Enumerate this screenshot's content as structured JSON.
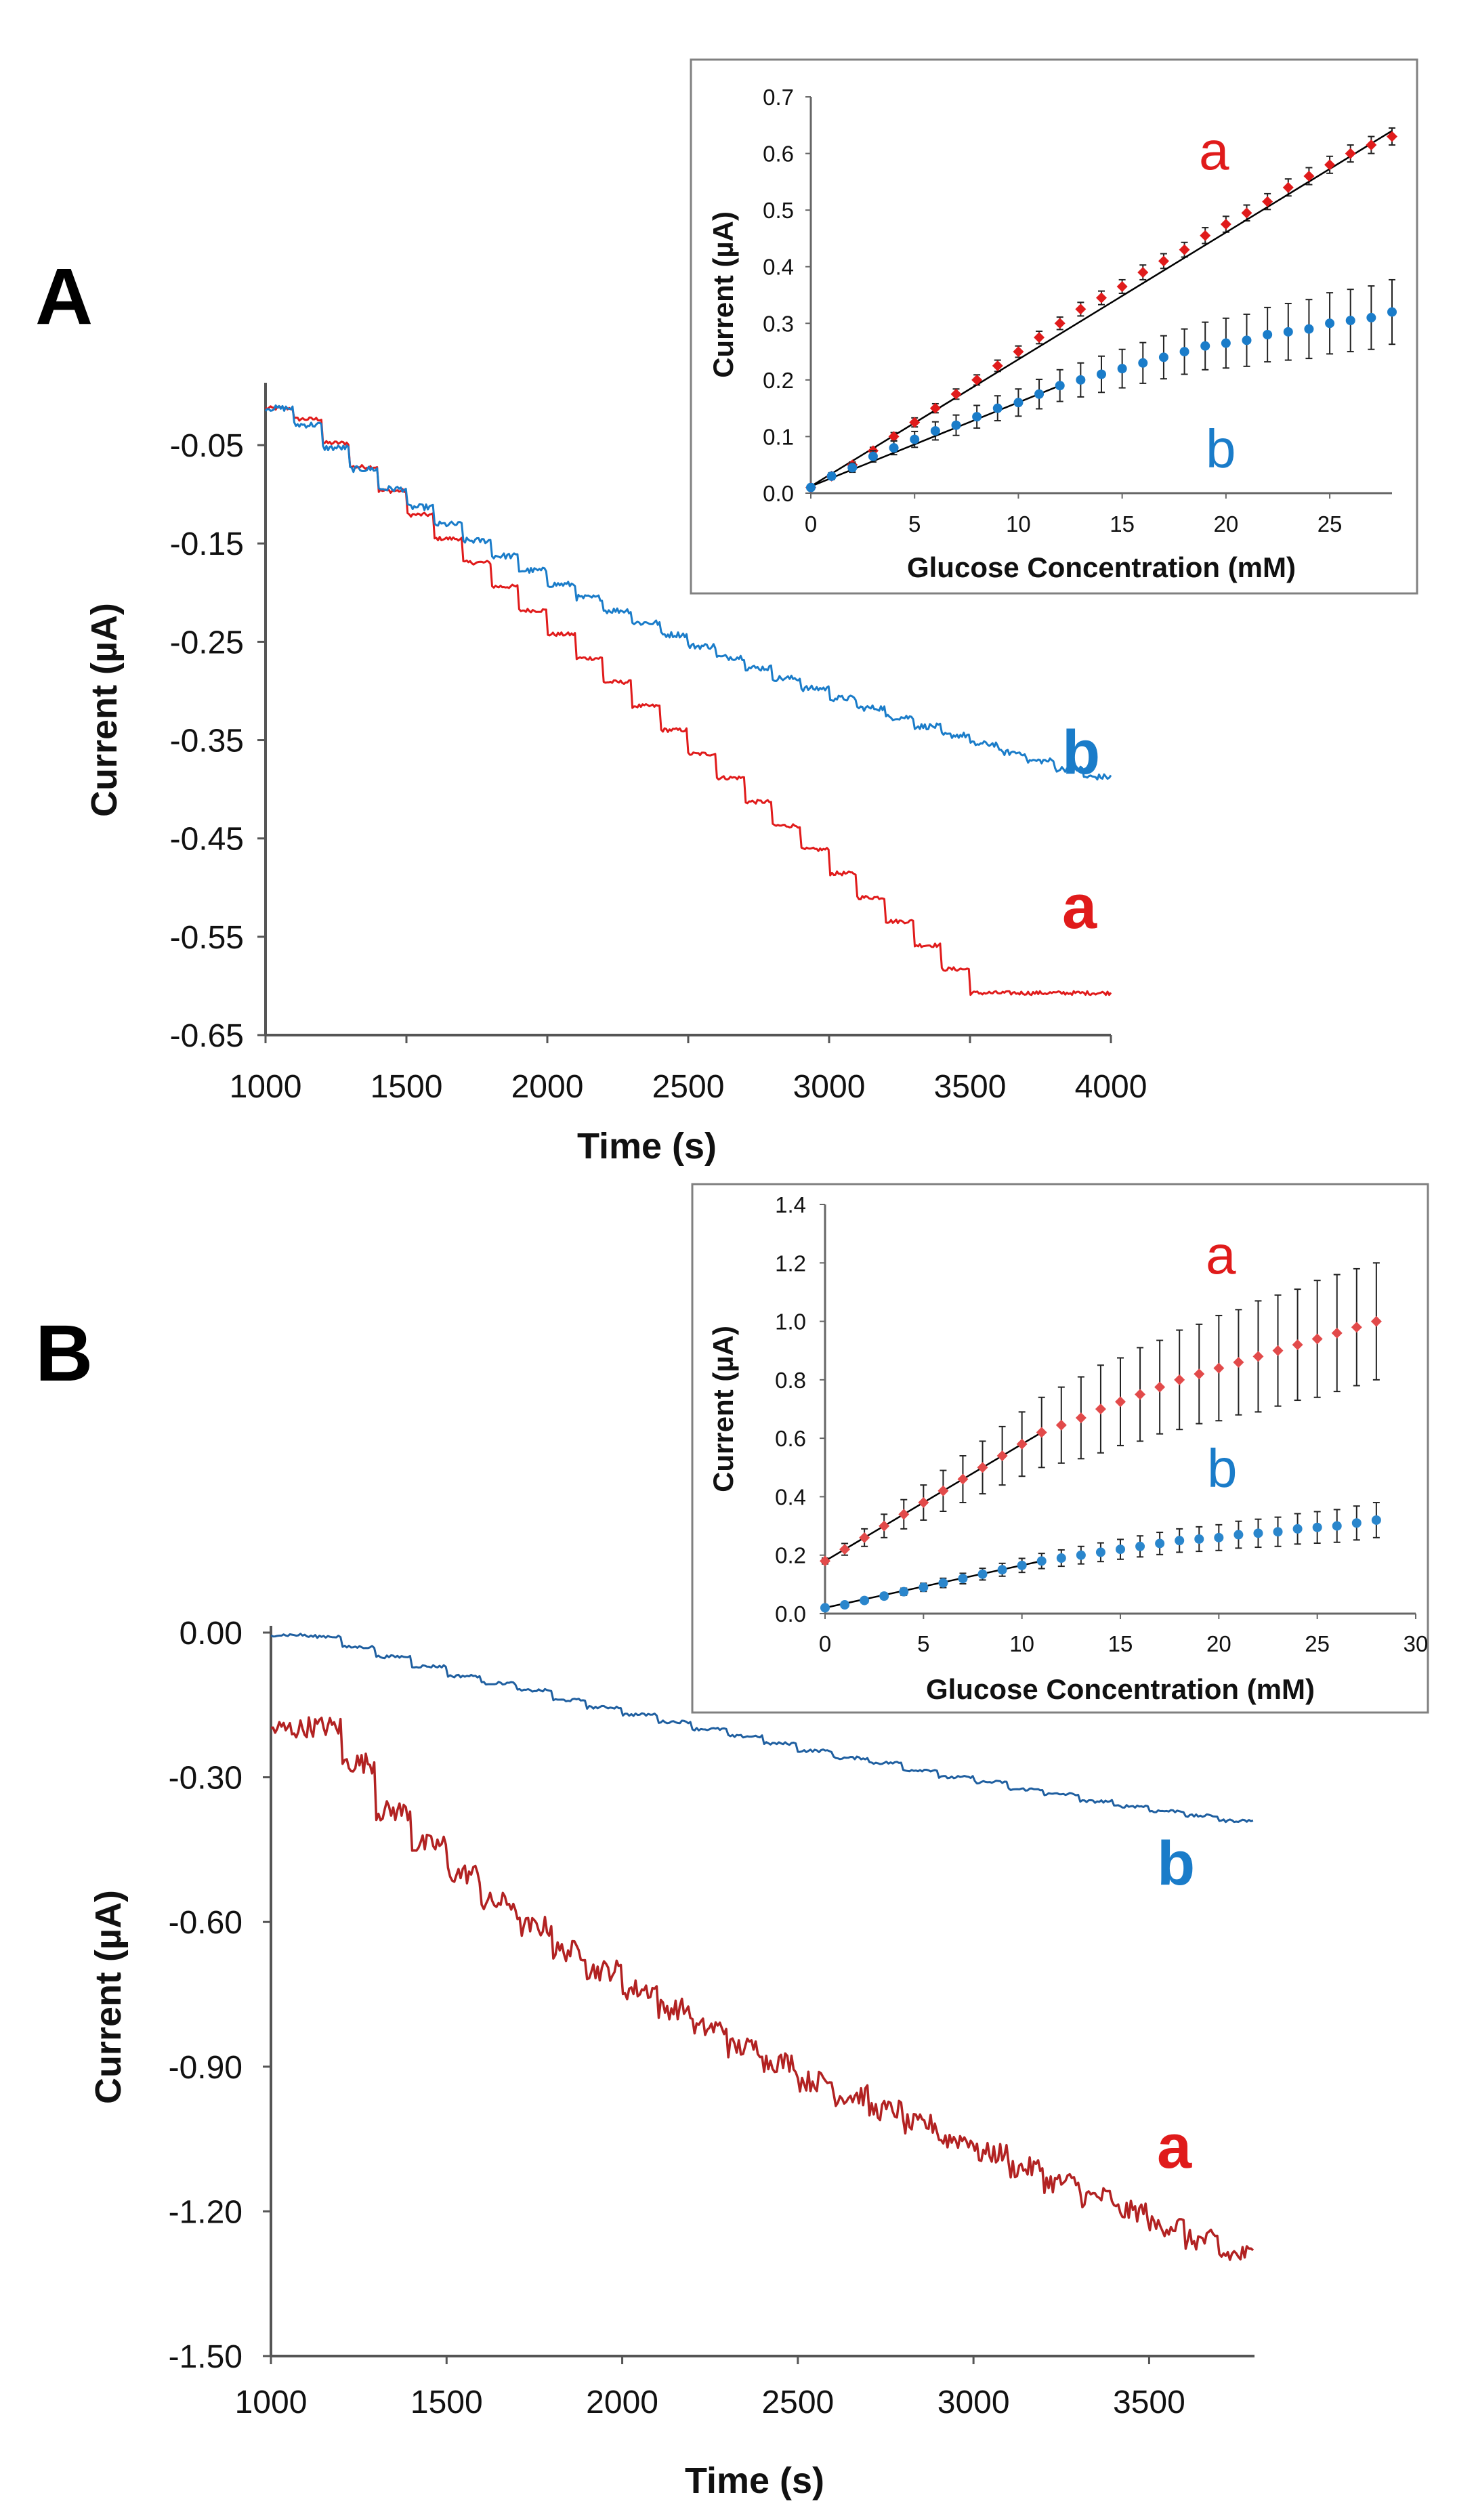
{
  "panels": {
    "A": {
      "label": "A"
    },
    "B": {
      "label": "B"
    }
  },
  "colors": {
    "red": "#e01b1b",
    "blue": "#1a7cc9",
    "dark_red": "#b22222",
    "dark_blue": "#1f5fa0",
    "inset_red": "#e24a4a",
    "inset_blue": "#2a86cc",
    "fit_line": "#000000",
    "error_bar": "#222222"
  },
  "chart_data": [
    {
      "id": "A-main",
      "type": "line",
      "xlabel": "Time (s)",
      "ylabel": "Current (µA)",
      "xlim": [
        1000,
        4000
      ],
      "ylim": [
        -0.65,
        0.01
      ],
      "x_ticks": [
        1000,
        1500,
        2000,
        2500,
        3000,
        3500,
        4000
      ],
      "x_tick_labels": [
        "1000",
        "1500",
        "2000",
        "2500",
        "3000",
        "3500",
        "4000"
      ],
      "y_ticks": [
        -0.05,
        -0.15,
        -0.25,
        -0.35,
        -0.45,
        -0.55,
        -0.65
      ],
      "y_tick_labels": [
        "-0.05",
        "-0.15",
        "-0.25",
        "-0.35",
        "-0.45",
        "-0.55",
        "-0.65"
      ],
      "step_interval_s": 100,
      "series": [
        {
          "name": "a",
          "label": "a",
          "color": "red",
          "x_start": 1000,
          "x_end": 4000,
          "levels": [
            -0.0125,
            -0.0235,
            -0.0478,
            -0.0721,
            -0.0965,
            -0.1208,
            -0.1451,
            -0.1694,
            -0.1938,
            -0.2181,
            -0.2424,
            -0.2667,
            -0.291,
            -0.3154,
            -0.3397,
            -0.364,
            -0.3883,
            -0.4127,
            -0.437,
            -0.4613,
            -0.4856,
            -0.51,
            -0.5343,
            -0.5586,
            -0.5829,
            -0.6072,
            -0.6072,
            -0.6072,
            -0.6072,
            -0.6072
          ],
          "noise": 0.002
        },
        {
          "name": "b",
          "label": "b",
          "color": "blue",
          "x_start": 1000,
          "x_end": 4000,
          "levels": [
            -0.0125,
            -0.0293,
            -0.0528,
            -0.0744,
            -0.0944,
            -0.1131,
            -0.1306,
            -0.1471,
            -0.1627,
            -0.1775,
            -0.1917,
            -0.2052,
            -0.2182,
            -0.2307,
            -0.2427,
            -0.2544,
            -0.2657,
            -0.2766,
            -0.2872,
            -0.2975,
            -0.3075,
            -0.3173,
            -0.3268,
            -0.3361,
            -0.3451,
            -0.354,
            -0.3626,
            -0.3711,
            -0.3794,
            -0.3875
          ],
          "noise": 0.003
        }
      ]
    },
    {
      "id": "A-inset",
      "type": "scatter",
      "xlabel": "Glucose Concentration (mM)",
      "ylabel": "Current (µA)",
      "xlim": [
        0,
        28
      ],
      "ylim": [
        0,
        0.7
      ],
      "x_ticks": [
        0,
        5,
        10,
        15,
        20,
        25
      ],
      "x_tick_labels": [
        "0",
        "5",
        "10",
        "15",
        "20",
        "25"
      ],
      "y_ticks": [
        0.0,
        0.1,
        0.2,
        0.3,
        0.4,
        0.5,
        0.6,
        0.7
      ],
      "y_tick_labels": [
        "0.0",
        "0.1",
        "0.2",
        "0.3",
        "0.4",
        "0.5",
        "0.6",
        "0.7"
      ],
      "series": [
        {
          "name": "a",
          "label": "a",
          "color": "red",
          "marker": "diamond",
          "x": [
            0,
            1,
            2,
            3,
            4,
            5,
            6,
            7,
            8,
            9,
            10,
            11,
            12,
            13,
            14,
            15,
            16,
            17,
            18,
            19,
            20,
            21,
            22,
            23,
            24,
            25,
            26,
            27,
            28
          ],
          "y": [
            0.01,
            0.03,
            0.05,
            0.075,
            0.1,
            0.125,
            0.15,
            0.175,
            0.2,
            0.225,
            0.25,
            0.275,
            0.3,
            0.325,
            0.345,
            0.365,
            0.39,
            0.41,
            0.43,
            0.455,
            0.475,
            0.495,
            0.515,
            0.54,
            0.56,
            0.58,
            0.6,
            0.615,
            0.63
          ],
          "error": [
            0,
            0.004,
            0.005,
            0.006,
            0.007,
            0.008,
            0.008,
            0.009,
            0.009,
            0.01,
            0.01,
            0.011,
            0.011,
            0.012,
            0.012,
            0.012,
            0.013,
            0.013,
            0.013,
            0.014,
            0.014,
            0.014,
            0.014,
            0.015,
            0.015,
            0.015,
            0.015,
            0.015,
            0.015
          ],
          "fit": {
            "x": [
              0,
              28
            ],
            "y": [
              0.012,
              0.64
            ]
          }
        },
        {
          "name": "b",
          "label": "b",
          "color": "blue",
          "marker": "circle",
          "x": [
            0,
            1,
            2,
            3,
            4,
            5,
            6,
            7,
            8,
            9,
            10,
            11,
            12,
            13,
            14,
            15,
            16,
            17,
            18,
            19,
            20,
            21,
            22,
            23,
            24,
            25,
            26,
            27,
            28
          ],
          "y": [
            0.01,
            0.03,
            0.045,
            0.065,
            0.08,
            0.095,
            0.11,
            0.12,
            0.135,
            0.15,
            0.16,
            0.175,
            0.19,
            0.2,
            0.21,
            0.22,
            0.23,
            0.24,
            0.25,
            0.26,
            0.265,
            0.27,
            0.28,
            0.285,
            0.29,
            0.3,
            0.305,
            0.31,
            0.32
          ],
          "error": [
            0,
            0.006,
            0.008,
            0.01,
            0.012,
            0.014,
            0.016,
            0.018,
            0.02,
            0.022,
            0.024,
            0.026,
            0.028,
            0.03,
            0.032,
            0.034,
            0.036,
            0.038,
            0.04,
            0.042,
            0.044,
            0.046,
            0.048,
            0.05,
            0.052,
            0.054,
            0.055,
            0.056,
            0.057
          ],
          "fit": {
            "x": [
              0,
              12
            ],
            "y": [
              0.012,
              0.19
            ]
          }
        }
      ]
    },
    {
      "id": "B-main",
      "type": "line",
      "xlabel": "Time (s)",
      "ylabel": "Current (µA)",
      "xlim": [
        1000,
        3800
      ],
      "ylim": [
        -1.5,
        0.0
      ],
      "x_ticks": [
        1000,
        1500,
        2000,
        2500,
        3000,
        3500
      ],
      "x_tick_labels": [
        "1000",
        "1500",
        "2000",
        "2500",
        "3000",
        "3500"
      ],
      "y_ticks": [
        0.0,
        -0.3,
        -0.6,
        -0.9,
        -1.2,
        -1.5
      ],
      "y_tick_labels": [
        "0.00",
        "-0.30",
        "-0.60",
        "-0.90",
        "-1.20",
        "-1.50"
      ],
      "step_interval_s": 100,
      "series": [
        {
          "name": "a",
          "label": "a",
          "color": "dark_red",
          "x_start": 1000,
          "x_end": 3800,
          "levels": [
            -0.2,
            -0.195,
            -0.27,
            -0.37,
            -0.44,
            -0.5,
            -0.56,
            -0.61,
            -0.66,
            -0.7,
            -0.74,
            -0.78,
            -0.82,
            -0.86,
            -0.89,
            -0.93,
            -0.96,
            -0.99,
            -1.02,
            -1.05,
            -1.08,
            -1.11,
            -1.14,
            -1.17,
            -1.2,
            -1.23,
            -1.26,
            -1.29
          ],
          "noise": 0.022
        },
        {
          "name": "b",
          "label": "b",
          "color": "dark_blue",
          "x_start": 1000,
          "x_end": 3800,
          "levels": [
            -0.005,
            -0.008,
            -0.03,
            -0.05,
            -0.07,
            -0.09,
            -0.105,
            -0.12,
            -0.14,
            -0.155,
            -0.17,
            -0.185,
            -0.2,
            -0.215,
            -0.23,
            -0.245,
            -0.26,
            -0.27,
            -0.285,
            -0.3,
            -0.31,
            -0.325,
            -0.335,
            -0.35,
            -0.36,
            -0.37,
            -0.38,
            -0.39
          ],
          "noise": 0.003
        }
      ]
    },
    {
      "id": "B-inset",
      "type": "scatter",
      "xlabel": "Glucose Concentration (mM)",
      "ylabel": "Current (µA)",
      "xlim": [
        0,
        30
      ],
      "ylim": [
        0,
        1.4
      ],
      "x_ticks": [
        0,
        5,
        10,
        15,
        20,
        25,
        30
      ],
      "x_tick_labels": [
        "0",
        "5",
        "10",
        "15",
        "20",
        "25",
        "30"
      ],
      "y_ticks": [
        0.0,
        0.2,
        0.4,
        0.6,
        0.8,
        1.0,
        1.2,
        1.4
      ],
      "y_tick_labels": [
        "0.0",
        "0.2",
        "0.4",
        "0.6",
        "0.8",
        "1.0",
        "1.2",
        "1.4"
      ],
      "series": [
        {
          "name": "a",
          "label": "a",
          "color": "inset_red",
          "marker": "diamond",
          "x": [
            0,
            1,
            2,
            3,
            4,
            5,
            6,
            7,
            8,
            9,
            10,
            11,
            12,
            13,
            14,
            15,
            16,
            17,
            18,
            19,
            20,
            21,
            22,
            23,
            24,
            25,
            26,
            27,
            28
          ],
          "y": [
            0.18,
            0.22,
            0.26,
            0.3,
            0.34,
            0.38,
            0.42,
            0.46,
            0.5,
            0.54,
            0.58,
            0.62,
            0.645,
            0.67,
            0.7,
            0.725,
            0.75,
            0.775,
            0.8,
            0.82,
            0.84,
            0.86,
            0.88,
            0.9,
            0.92,
            0.94,
            0.96,
            0.98,
            1.0
          ],
          "error": [
            0.01,
            0.02,
            0.03,
            0.04,
            0.05,
            0.06,
            0.07,
            0.08,
            0.09,
            0.1,
            0.11,
            0.12,
            0.13,
            0.14,
            0.15,
            0.15,
            0.16,
            0.16,
            0.17,
            0.17,
            0.18,
            0.18,
            0.19,
            0.19,
            0.19,
            0.2,
            0.2,
            0.2,
            0.2
          ],
          "fit": {
            "x": [
              0,
              11
            ],
            "y": [
              0.18,
              0.62
            ]
          }
        },
        {
          "name": "b",
          "label": "b",
          "color": "inset_blue",
          "marker": "circle",
          "x": [
            0,
            1,
            2,
            3,
            4,
            5,
            6,
            7,
            8,
            9,
            10,
            11,
            12,
            13,
            14,
            15,
            16,
            17,
            18,
            19,
            20,
            21,
            22,
            23,
            24,
            25,
            26,
            27,
            28
          ],
          "y": [
            0.02,
            0.03,
            0.045,
            0.06,
            0.075,
            0.09,
            0.105,
            0.12,
            0.135,
            0.15,
            0.165,
            0.18,
            0.19,
            0.2,
            0.21,
            0.22,
            0.23,
            0.24,
            0.25,
            0.255,
            0.26,
            0.27,
            0.275,
            0.28,
            0.29,
            0.295,
            0.3,
            0.31,
            0.32
          ],
          "error": [
            0.005,
            0.006,
            0.008,
            0.01,
            0.012,
            0.014,
            0.016,
            0.018,
            0.02,
            0.022,
            0.024,
            0.026,
            0.028,
            0.03,
            0.032,
            0.034,
            0.036,
            0.038,
            0.04,
            0.042,
            0.044,
            0.046,
            0.048,
            0.05,
            0.052,
            0.054,
            0.056,
            0.058,
            0.06
          ],
          "fit": {
            "x": [
              0,
              11
            ],
            "y": [
              0.02,
              0.18
            ]
          }
        }
      ]
    }
  ]
}
